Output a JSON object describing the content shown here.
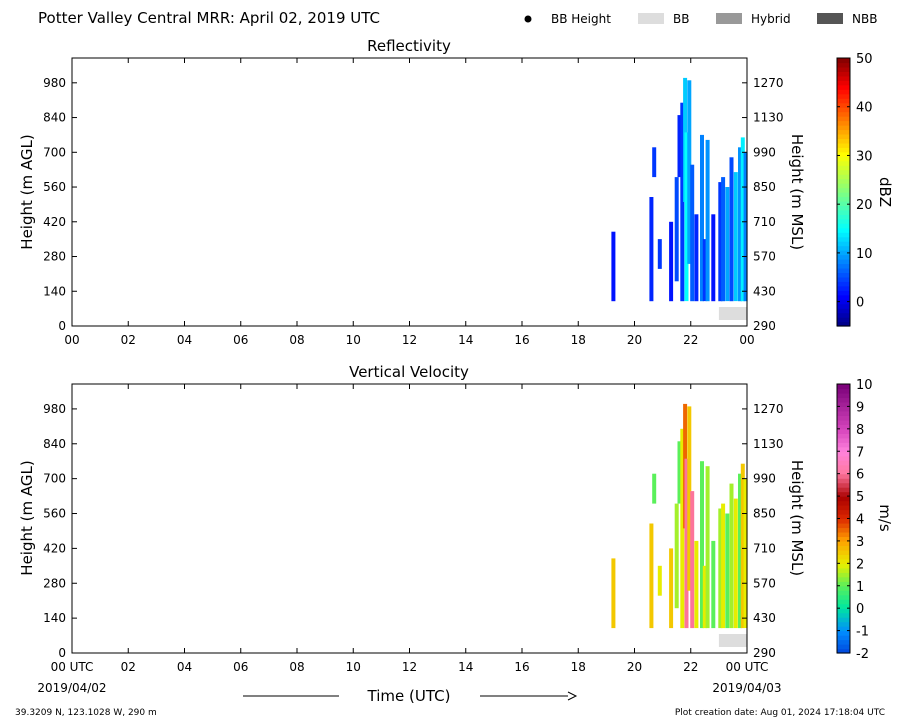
{
  "header": {
    "title": "Potter Valley Central MRR:  April 02, 2019 UTC",
    "legend": [
      {
        "label": "BB Height",
        "kind": "dot",
        "color": "#000000"
      },
      {
        "label": "BB",
        "kind": "box",
        "color": "#dddddd"
      },
      {
        "label": "Hybrid",
        "kind": "box",
        "color": "#999999"
      },
      {
        "label": "NBB",
        "kind": "box",
        "color": "#555555"
      }
    ]
  },
  "footer": {
    "location": "39.3209 N, 123.1028 W, 290 m",
    "creation": "Plot creation date: Aug 01, 2024 17:18:04 UTC",
    "start_date": "2019/04/02",
    "end_date": "2019/04/03",
    "time_label": "Time (UTC)"
  },
  "chart_data": [
    {
      "type": "heatmap",
      "title": "Reflectivity",
      "ylabel": "Height (m AGL)",
      "ylabel_right": "Height (m MSL)",
      "xlim": [
        0,
        24
      ],
      "ylim": [
        0,
        1080
      ],
      "x_ticks": [
        "00",
        "02",
        "04",
        "06",
        "08",
        "10",
        "12",
        "14",
        "16",
        "18",
        "20",
        "22",
        "00"
      ],
      "y_ticks": [
        0,
        140,
        280,
        420,
        560,
        700,
        840,
        980
      ],
      "y_ticks_right": [
        290,
        430,
        570,
        710,
        850,
        990,
        1130,
        1270
      ],
      "colorbar": {
        "label": "dBZ",
        "min": -5,
        "max": 50,
        "ticks": [
          0,
          10,
          20,
          30,
          40,
          50
        ],
        "colormap": "jet"
      },
      "bb_bar": {
        "x": [
          23.0,
          24.0
        ],
        "category": "BB"
      },
      "columns": [
        {
          "x": 19.25,
          "h0": 100,
          "h1": 380,
          "v": 2
        },
        {
          "x": 20.6,
          "h0": 100,
          "h1": 520,
          "v": 3
        },
        {
          "x": 20.7,
          "h0": 600,
          "h1": 720,
          "v": 4
        },
        {
          "x": 20.9,
          "h0": 230,
          "h1": 350,
          "v": 4
        },
        {
          "x": 21.3,
          "h0": 100,
          "h1": 420,
          "v": 2
        },
        {
          "x": 21.5,
          "h0": 180,
          "h1": 600,
          "v": 5
        },
        {
          "x": 21.6,
          "h0": 600,
          "h1": 850,
          "v": 3
        },
        {
          "x": 21.7,
          "h0": 100,
          "h1": 900,
          "v": 4
        },
        {
          "x": 21.8,
          "h0": 500,
          "h1": 1000,
          "v": 12
        },
        {
          "x": 21.85,
          "h0": 100,
          "h1": 780,
          "v": 15
        },
        {
          "x": 21.95,
          "h0": 250,
          "h1": 990,
          "v": 10
        },
        {
          "x": 22.05,
          "h0": 100,
          "h1": 650,
          "v": 6
        },
        {
          "x": 22.2,
          "h0": 100,
          "h1": 450,
          "v": 3
        },
        {
          "x": 22.4,
          "h0": 100,
          "h1": 770,
          "v": 8
        },
        {
          "x": 22.5,
          "h0": 100,
          "h1": 350,
          "v": 4
        },
        {
          "x": 22.6,
          "h0": 100,
          "h1": 750,
          "v": 9
        },
        {
          "x": 22.8,
          "h0": 100,
          "h1": 450,
          "v": 2
        },
        {
          "x": 23.05,
          "h0": 100,
          "h1": 580,
          "v": 4
        },
        {
          "x": 23.15,
          "h0": 100,
          "h1": 600,
          "v": 6
        },
        {
          "x": 23.3,
          "h0": 100,
          "h1": 560,
          "v": 10
        },
        {
          "x": 23.45,
          "h0": 100,
          "h1": 680,
          "v": 5
        },
        {
          "x": 23.6,
          "h0": 100,
          "h1": 620,
          "v": 12
        },
        {
          "x": 23.75,
          "h0": 100,
          "h1": 720,
          "v": 9
        },
        {
          "x": 23.85,
          "h0": 100,
          "h1": 760,
          "v": 14
        },
        {
          "x": 23.95,
          "h0": 100,
          "h1": 700,
          "v": 8
        }
      ]
    },
    {
      "type": "heatmap",
      "title": "Vertical Velocity",
      "ylabel": "Height (m AGL)",
      "ylabel_right": "Height (m MSL)",
      "xlim": [
        0,
        24
      ],
      "ylim": [
        0,
        1080
      ],
      "x_ticks": [
        "00 UTC",
        "02",
        "04",
        "06",
        "08",
        "10",
        "12",
        "14",
        "16",
        "18",
        "20",
        "22",
        "00 UTC"
      ],
      "y_ticks": [
        0,
        140,
        280,
        420,
        560,
        700,
        840,
        980
      ],
      "y_ticks_right": [
        290,
        430,
        570,
        710,
        850,
        990,
        1130,
        1270
      ],
      "colorbar": {
        "label": "m/s",
        "min": -2,
        "max": 10,
        "ticks": [
          -2,
          -1,
          0,
          1,
          2,
          3,
          4,
          5,
          6,
          7,
          8,
          9,
          10
        ],
        "colormap": "velocity"
      },
      "bb_bar": {
        "x": [
          23.0,
          24.0
        ],
        "category": "BB"
      },
      "columns": [
        {
          "x": 19.25,
          "h0": 100,
          "h1": 380,
          "v": 2.5
        },
        {
          "x": 20.6,
          "h0": 100,
          "h1": 520,
          "v": 2.5
        },
        {
          "x": 20.7,
          "h0": 600,
          "h1": 720,
          "v": 1.0
        },
        {
          "x": 20.9,
          "h0": 230,
          "h1": 350,
          "v": 2.0
        },
        {
          "x": 21.3,
          "h0": 100,
          "h1": 420,
          "v": 2.5
        },
        {
          "x": 21.5,
          "h0": 180,
          "h1": 600,
          "v": 1.5
        },
        {
          "x": 21.6,
          "h0": 600,
          "h1": 850,
          "v": 1.0
        },
        {
          "x": 21.7,
          "h0": 100,
          "h1": 900,
          "v": 2.0
        },
        {
          "x": 21.8,
          "h0": 500,
          "h1": 1000,
          "v": 3.5
        },
        {
          "x": 21.85,
          "h0": 100,
          "h1": 780,
          "v": 6.0
        },
        {
          "x": 21.95,
          "h0": 250,
          "h1": 990,
          "v": 2.5
        },
        {
          "x": 22.05,
          "h0": 100,
          "h1": 650,
          "v": 6.0
        },
        {
          "x": 22.2,
          "h0": 100,
          "h1": 450,
          "v": 2.0
        },
        {
          "x": 22.4,
          "h0": 100,
          "h1": 770,
          "v": 1.0
        },
        {
          "x": 22.5,
          "h0": 100,
          "h1": 350,
          "v": 2.0
        },
        {
          "x": 22.6,
          "h0": 100,
          "h1": 750,
          "v": 1.5
        },
        {
          "x": 22.8,
          "h0": 100,
          "h1": 450,
          "v": 1.0
        },
        {
          "x": 23.05,
          "h0": 100,
          "h1": 580,
          "v": 1.5
        },
        {
          "x": 23.15,
          "h0": 100,
          "h1": 600,
          "v": 2.0
        },
        {
          "x": 23.3,
          "h0": 100,
          "h1": 560,
          "v": 1.0
        },
        {
          "x": 23.45,
          "h0": 100,
          "h1": 680,
          "v": 1.5
        },
        {
          "x": 23.6,
          "h0": 100,
          "h1": 620,
          "v": 2.0
        },
        {
          "x": 23.75,
          "h0": 100,
          "h1": 720,
          "v": 1.0
        },
        {
          "x": 23.85,
          "h0": 100,
          "h1": 760,
          "v": 2.5
        },
        {
          "x": 23.95,
          "h0": 100,
          "h1": 700,
          "v": 2.0
        }
      ]
    }
  ]
}
